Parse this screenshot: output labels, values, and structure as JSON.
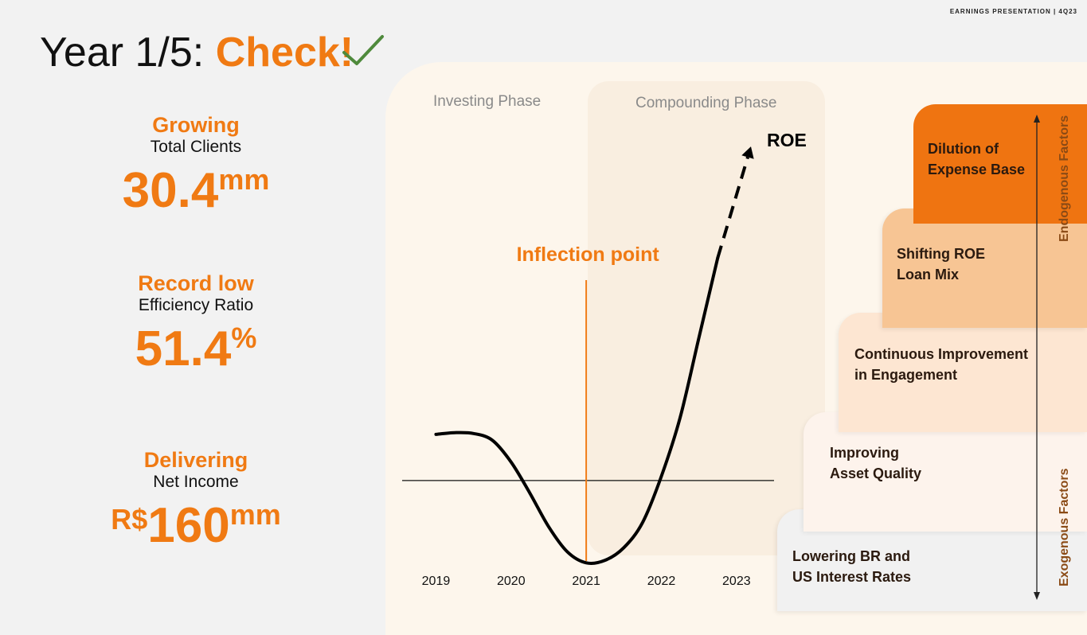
{
  "header": {
    "tag": "EARNINGS PRESENTATION | 4Q23"
  },
  "title": {
    "prefix": "Year 1/5: ",
    "accent": "Check!"
  },
  "kpis": [
    {
      "headline": "Growing",
      "subtitle": "Total Clients",
      "value": "30.4",
      "unit": "mm",
      "prefix": ""
    },
    {
      "headline": "Record low",
      "subtitle": "Efficiency Ratio",
      "value": "51.4",
      "unit": "%",
      "prefix": ""
    },
    {
      "headline": "Delivering",
      "subtitle": "Net Income",
      "value": "160",
      "unit": "mm",
      "prefix": "R$"
    }
  ],
  "phases": {
    "investing": "Investing Phase",
    "compounding": "Compounding Phase"
  },
  "colors": {
    "accent": "#f07a13",
    "check": "#4f8a3c",
    "step1": "#ef7411",
    "step2": "#f7c594",
    "step3": "#fde6d2",
    "step4": "#fdf3ec",
    "step5": "#f1f1f1"
  },
  "chart_data": {
    "type": "line",
    "title": "",
    "series": [
      {
        "name": "ROE",
        "x": [
          2019,
          2019.25,
          2019.5,
          2019.75,
          2020,
          2020.25,
          2020.5,
          2020.75,
          2021,
          2021.25,
          2021.5,
          2021.75,
          2022,
          2022.25,
          2022.5,
          2022.75
        ],
        "y": [
          0.55,
          0.57,
          0.56,
          0.48,
          0.22,
          -0.15,
          -0.55,
          -0.85,
          -0.98,
          -0.95,
          -0.8,
          -0.5,
          0.05,
          0.75,
          1.7,
          2.65
        ]
      },
      {
        "name": "",
        "style": "dashed-arrow",
        "x": [
          2022.75,
          2023.15
        ],
        "y": [
          2.65,
          3.85
        ]
      }
    ],
    "series_label": "ROE",
    "x_ticks": [
      "2019",
      "2020",
      "2021",
      "2022",
      "2023"
    ],
    "xlim": [
      2018.55,
      2023.5
    ],
    "ylim": [
      -1.1,
      4.3
    ],
    "baseline_y": 0,
    "inflection": {
      "x": 2021,
      "label": "Inflection point"
    }
  },
  "factors": {
    "steps": [
      {
        "label": "Dilution of\nExpense Base"
      },
      {
        "label": "Shifting ROE\nLoan Mix"
      },
      {
        "label": "Continuous Improvement\nin Engagement"
      },
      {
        "label": "Improving\nAsset Quality"
      },
      {
        "label": "Lowering BR and\nUS Interest Rates"
      }
    ],
    "endogenous": "Endogenous Factors",
    "exogenous": "Exogenous Factors"
  }
}
